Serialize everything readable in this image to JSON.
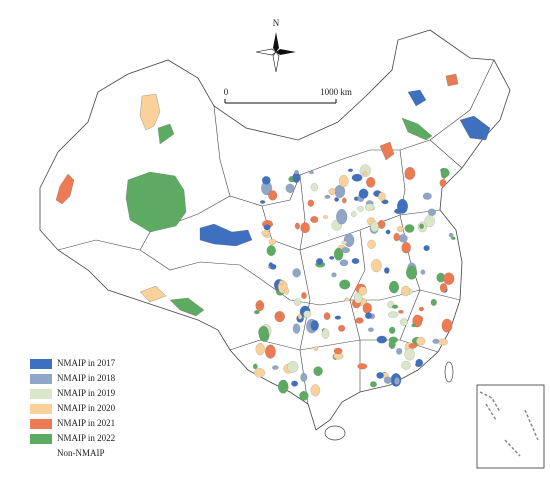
{
  "map": {
    "north_label": "N",
    "scale_bar": {
      "start_label": "0",
      "end_label": "1000 km"
    },
    "legend": {
      "items": [
        {
          "label": "NMAIP in 2017",
          "color": "#3f6fbf"
        },
        {
          "label": "NMAIP in 2018",
          "color": "#8fa6c8"
        },
        {
          "label": "NMAIP in 2019",
          "color": "#dbe6c9"
        },
        {
          "label": "NMAIP in 2020",
          "color": "#f9d19b"
        },
        {
          "label": "NMAIP in 2021",
          "color": "#ec7a52"
        },
        {
          "label": "NMAIP in 2022",
          "color": "#5dab62"
        },
        {
          "label": "Non-NMAIP",
          "color": "#ffffff"
        }
      ]
    }
  }
}
